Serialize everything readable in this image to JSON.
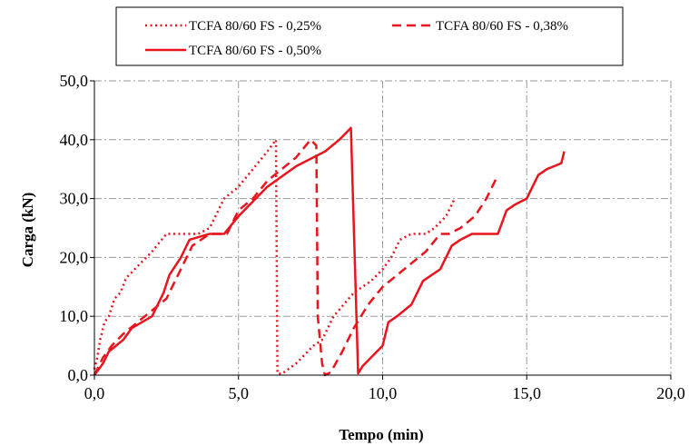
{
  "chart_data": {
    "type": "line",
    "title": "",
    "xlabel": "Tempo (min)",
    "ylabel": "Carga (kN)",
    "xlim": [
      0,
      20
    ],
    "ylim": [
      0,
      50
    ],
    "x_ticks": [
      0,
      5,
      10,
      15,
      20
    ],
    "y_ticks": [
      0,
      10,
      20,
      30,
      40,
      50
    ],
    "x_tick_labels": [
      "0,0",
      "5,0",
      "10,0",
      "15,0",
      "20,0"
    ],
    "y_tick_labels": [
      "0,0",
      "10,0",
      "20,0",
      "30,0",
      "40,0",
      "50,0"
    ],
    "grid": true,
    "legend_position": "top",
    "line_color": "#e8141e",
    "series": [
      {
        "name": "TCFA 80/60 FS - 0,25%",
        "style": "dotted",
        "x": [
          0,
          0.1,
          0.2,
          0.35,
          0.5,
          0.7,
          0.9,
          1.1,
          1.3,
          1.6,
          2.0,
          2.5,
          3.0,
          3.6,
          4.0,
          4.2,
          4.5,
          5.0,
          5.5,
          6.0,
          6.3,
          6.35,
          6.5,
          7.0,
          7.6,
          7.9,
          8.3,
          9.0,
          9.6,
          10.0,
          10.3,
          10.6,
          11.0,
          11.5,
          11.8,
          12.2,
          12.5
        ],
        "y": [
          1,
          3,
          6,
          9,
          10,
          13,
          14,
          16.5,
          17.5,
          19,
          21,
          24,
          24,
          24,
          25,
          27,
          30,
          32,
          35,
          38,
          40,
          0.3,
          0.2,
          2,
          5,
          6,
          10,
          14,
          16,
          18,
          20,
          23,
          24,
          24,
          25,
          27,
          30
        ]
      },
      {
        "name": "TCFA 80/60 FS - 0,38%",
        "style": "dashed",
        "x": [
          0,
          0.3,
          0.6,
          1.0,
          1.5,
          2.0,
          2.5,
          3.0,
          3.4,
          4.0,
          4.6,
          5.0,
          5.5,
          6.0,
          6.5,
          7.0,
          7.5,
          7.7,
          7.75,
          7.9,
          8.0,
          8.2,
          8.6,
          9.0,
          9.5,
          10.0,
          10.5,
          11.0,
          11.5,
          12.0,
          12.3,
          12.7,
          13.2,
          13.6,
          14.0
        ],
        "y": [
          0,
          3,
          5,
          7,
          9,
          11,
          13,
          18,
          22,
          24,
          24,
          28,
          30,
          33,
          35,
          37,
          40,
          39,
          10,
          2,
          0,
          0.5,
          4,
          8,
          12,
          15,
          17,
          19,
          21,
          24,
          24,
          25,
          27,
          30,
          34
        ]
      },
      {
        "name": "TCFA 80/60 FS - 0,50%",
        "style": "solid",
        "x": [
          0,
          0.3,
          0.5,
          1.0,
          1.3,
          2.0,
          2.4,
          2.6,
          3.0,
          3.3,
          4.0,
          4.5,
          5.0,
          6.0,
          7.0,
          8.0,
          8.5,
          8.9,
          9.15,
          9.3,
          9.6,
          10.0,
          10.2,
          10.5,
          11.0,
          11.4,
          12.0,
          12.4,
          12.7,
          13.1,
          13.5,
          14.0,
          14.3,
          14.6,
          15.0,
          15.4,
          15.7,
          16.2,
          16.3
        ],
        "y": [
          0,
          2,
          4,
          6,
          8,
          10,
          14,
          17,
          20,
          23,
          24,
          24,
          27,
          32,
          35.5,
          38,
          40,
          42,
          0.3,
          1.5,
          3,
          5,
          9,
          10,
          12,
          16,
          18,
          22,
          23,
          24,
          24,
          24,
          28,
          29,
          30,
          34,
          35,
          36,
          38
        ]
      }
    ]
  }
}
